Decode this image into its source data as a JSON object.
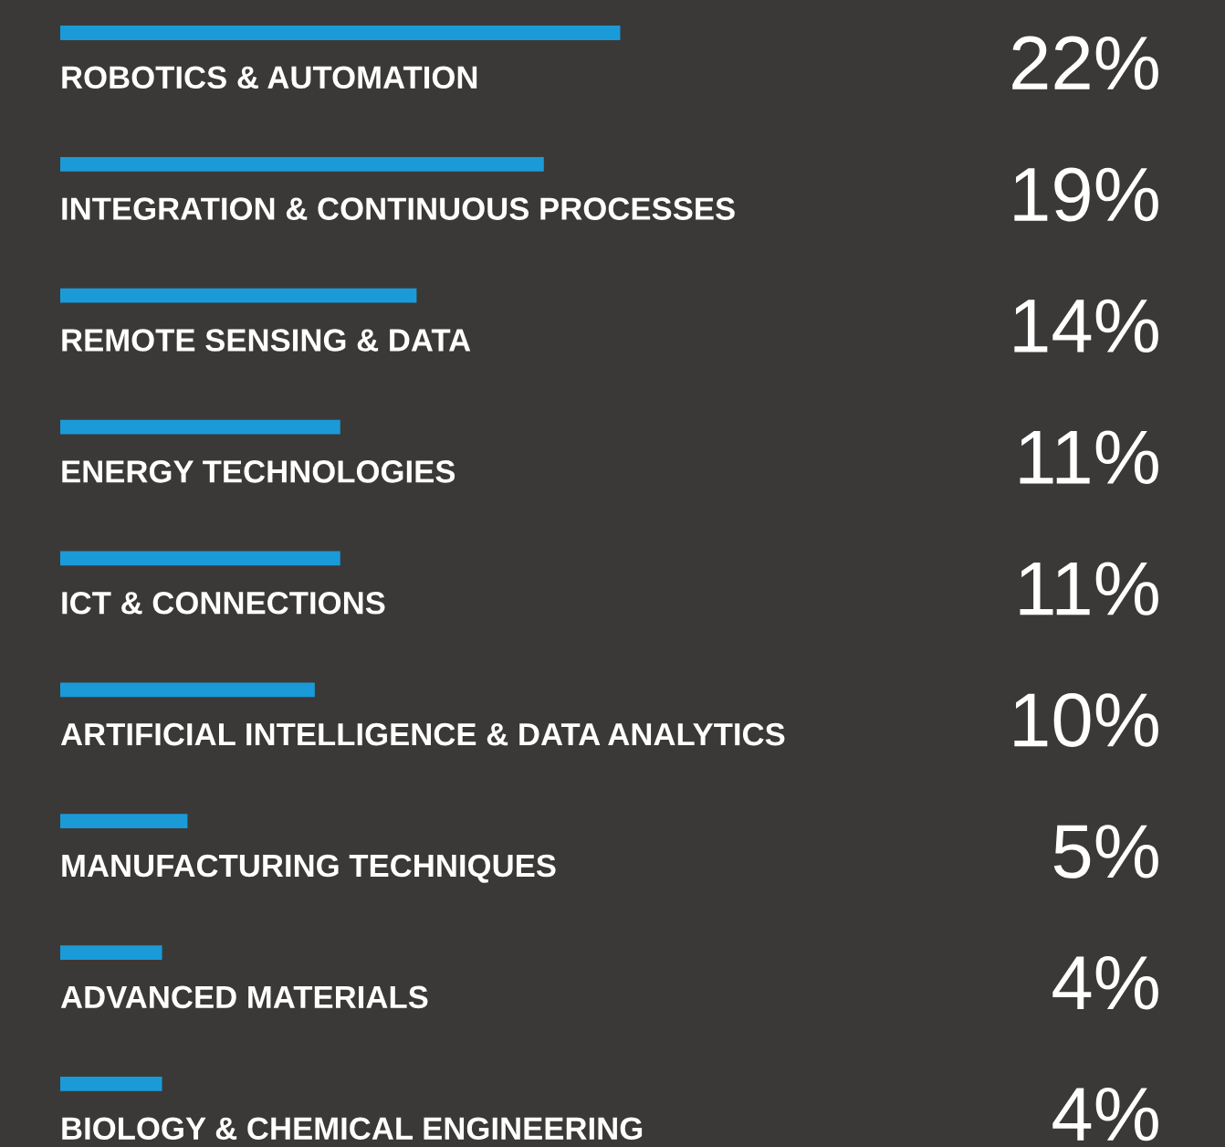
{
  "chart_data": {
    "type": "bar",
    "orientation": "horizontal",
    "categories": [
      "ROBOTICS & AUTOMATION",
      "INTEGRATION & CONTINUOUS PROCESSES",
      "REMOTE SENSING & DATA",
      "ENERGY TECHNOLOGIES",
      "ICT & CONNECTIONS",
      "ARTIFICIAL INTELLIGENCE & DATA ANALYTICS",
      "MANUFACTURING TECHNIQUES",
      "ADVANCED MATERIALS",
      "BIOLOGY & CHEMICAL ENGINEERING"
    ],
    "values": [
      22,
      19,
      14,
      11,
      11,
      10,
      5,
      4,
      4
    ],
    "value_labels": [
      "22%",
      "19%",
      "14%",
      "11%",
      "11%",
      "10%",
      "5%",
      "4%",
      "4%"
    ],
    "color": "#1b9ad8"
  }
}
